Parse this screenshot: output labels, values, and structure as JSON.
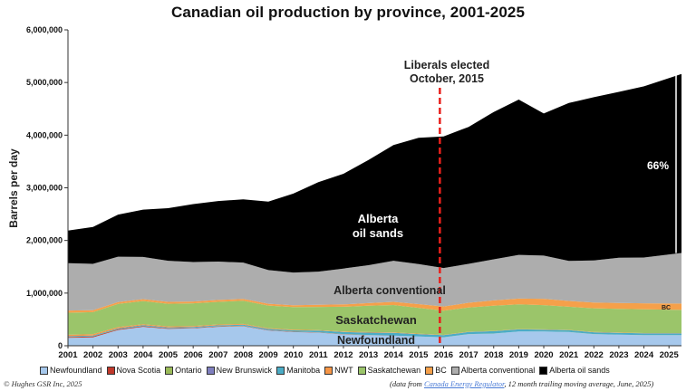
{
  "title": "Canadian oil production by province, 2001-2025",
  "copyright": "© Hughes GSR Inc, 2025",
  "source": {
    "prefix": "(data from ",
    "link_text": "Canada Energy Regulator",
    "suffix": ", 12 month trailing moving average, June, 2025)"
  },
  "chart_data": {
    "type": "area",
    "stacked": true,
    "title": "Canadian oil production by province, 2001-2025",
    "ylabel": "Barrels per day",
    "xlabel": "",
    "ylim": [
      0,
      6000000
    ],
    "xlim": [
      2001,
      2025.5
    ],
    "y_ticks": [
      0,
      1000000,
      2000000,
      3000000,
      4000000,
      5000000,
      6000000
    ],
    "y_tick_labels": [
      "0",
      "1,000,000",
      "2,000,000",
      "3,000,000",
      "4,000,000",
      "5,000,000",
      "6,000,000"
    ],
    "x_ticks": [
      2001,
      2002,
      2003,
      2004,
      2005,
      2006,
      2007,
      2008,
      2009,
      2010,
      2011,
      2012,
      2013,
      2014,
      2015,
      2016,
      2017,
      2018,
      2019,
      2020,
      2021,
      2022,
      2023,
      2024,
      2025
    ],
    "x_tick_labels": [
      "2001",
      "2002",
      "2003",
      "2004",
      "2005",
      "2006",
      "2007",
      "2008",
      "2009",
      "2010",
      "2011",
      "2012",
      "2013",
      "2014",
      "2015",
      "2016",
      "2017",
      "2018",
      "2019",
      "2020",
      "2021",
      "2022",
      "2023",
      "2024",
      "2025"
    ],
    "grid": false,
    "legend_position": "bottom",
    "x": [
      2001,
      2002,
      2003,
      2004,
      2005,
      2006,
      2007,
      2008,
      2009,
      2010,
      2011,
      2012,
      2013,
      2014,
      2015,
      2016,
      2017,
      2018,
      2019,
      2020,
      2021,
      2022,
      2023,
      2024,
      2025.5
    ],
    "series": [
      {
        "name": "Newfoundland",
        "color": "#a6c8ec",
        "values": [
          150000,
          160000,
          300000,
          360000,
          320000,
          330000,
          360000,
          370000,
          290000,
          260000,
          250000,
          215000,
          200000,
          190000,
          175000,
          160000,
          220000,
          230000,
          270000,
          270000,
          260000,
          220000,
          210000,
          200000,
          200000
        ]
      },
      {
        "name": "Nova Scotia",
        "color": "#c0392b",
        "values": [
          15000,
          15000,
          13000,
          12000,
          10000,
          8000,
          8000,
          7000,
          6000,
          6000,
          5000,
          4000,
          3000,
          2000,
          1000,
          0,
          0,
          0,
          0,
          0,
          0,
          0,
          0,
          0,
          0
        ]
      },
      {
        "name": "Ontario",
        "color": "#9bbb59",
        "values": [
          3000,
          3000,
          3000,
          3000,
          3000,
          2500,
          2500,
          2500,
          2000,
          2000,
          2000,
          2000,
          2000,
          2000,
          1500,
          1500,
          1500,
          1500,
          1500,
          1500,
          1500,
          1500,
          1500,
          1500,
          1500
        ]
      },
      {
        "name": "New Brunswick",
        "color": "#7f7fbf",
        "values": [
          0,
          0,
          0,
          0,
          0,
          0,
          0,
          0,
          0,
          0,
          0,
          0,
          0,
          0,
          0,
          0,
          0,
          0,
          0,
          0,
          0,
          0,
          0,
          0,
          0
        ]
      },
      {
        "name": "Manitoba",
        "color": "#4bacc6",
        "values": [
          15000,
          15000,
          15000,
          15000,
          16000,
          17000,
          18000,
          20000,
          22000,
          25000,
          30000,
          40000,
          45000,
          50000,
          45000,
          40000,
          40000,
          45000,
          40000,
          35000,
          35000,
          35000,
          35000,
          35000,
          35000
        ]
      },
      {
        "name": "NWT",
        "color": "#f79646",
        "values": [
          25000,
          25000,
          23000,
          20000,
          19000,
          18000,
          16000,
          15000,
          13000,
          12000,
          11000,
          10000,
          10000,
          10000,
          8000,
          5000,
          5000,
          5000,
          5000,
          5000,
          5000,
          5000,
          5000,
          5000,
          5000
        ]
      },
      {
        "name": "Saskatchewan",
        "color": "#9bc56a",
        "values": [
          420000,
          420000,
          440000,
          440000,
          430000,
          430000,
          430000,
          440000,
          430000,
          430000,
          440000,
          470000,
          500000,
          520000,
          490000,
          460000,
          460000,
          480000,
          470000,
          460000,
          440000,
          450000,
          450000,
          450000,
          440000
        ]
      },
      {
        "name": "BC",
        "color": "#f5a04a",
        "values": [
          40000,
          38000,
          37000,
          36000,
          36000,
          35000,
          35000,
          35000,
          35000,
          35000,
          40000,
          45000,
          50000,
          60000,
          70000,
          80000,
          90000,
          100000,
          110000,
          120000,
          110000,
          110000,
          110000,
          115000,
          120000
        ]
      },
      {
        "name": "Alberta conventional",
        "color": "#adadad",
        "values": [
          900000,
          880000,
          860000,
          800000,
          780000,
          750000,
          730000,
          690000,
          640000,
          620000,
          630000,
          680000,
          720000,
          780000,
          760000,
          730000,
          740000,
          780000,
          830000,
          820000,
          760000,
          800000,
          860000,
          870000,
          960000
        ]
      },
      {
        "name": "Alberta oil sands",
        "color": "#000000",
        "values": [
          620000,
          700000,
          800000,
          900000,
          1000000,
          1100000,
          1150000,
          1200000,
          1300000,
          1500000,
          1700000,
          1800000,
          2000000,
          2200000,
          2400000,
          2500000,
          2600000,
          2800000,
          2950000,
          2700000,
          3000000,
          3100000,
          3150000,
          3250000,
          3400000
        ]
      }
    ],
    "annotations": [
      {
        "text": "Liberals elected",
        "type": "event-line-label"
      },
      {
        "text": "October, 2015",
        "type": "event-line-label"
      },
      {
        "text": "Alberta",
        "type": "area-label"
      },
      {
        "text": "oil sands",
        "type": "area-label"
      },
      {
        "text": "Alberta conventional",
        "type": "area-label"
      },
      {
        "text": "Saskatchewan",
        "type": "area-label"
      },
      {
        "text": "Newfoundland",
        "type": "area-label"
      },
      {
        "text": "BC",
        "type": "area-label"
      },
      {
        "text": "66%",
        "type": "share-label"
      }
    ],
    "event_line": {
      "x": 2015.85,
      "color": "#e8201c",
      "style": "dashed"
    }
  }
}
